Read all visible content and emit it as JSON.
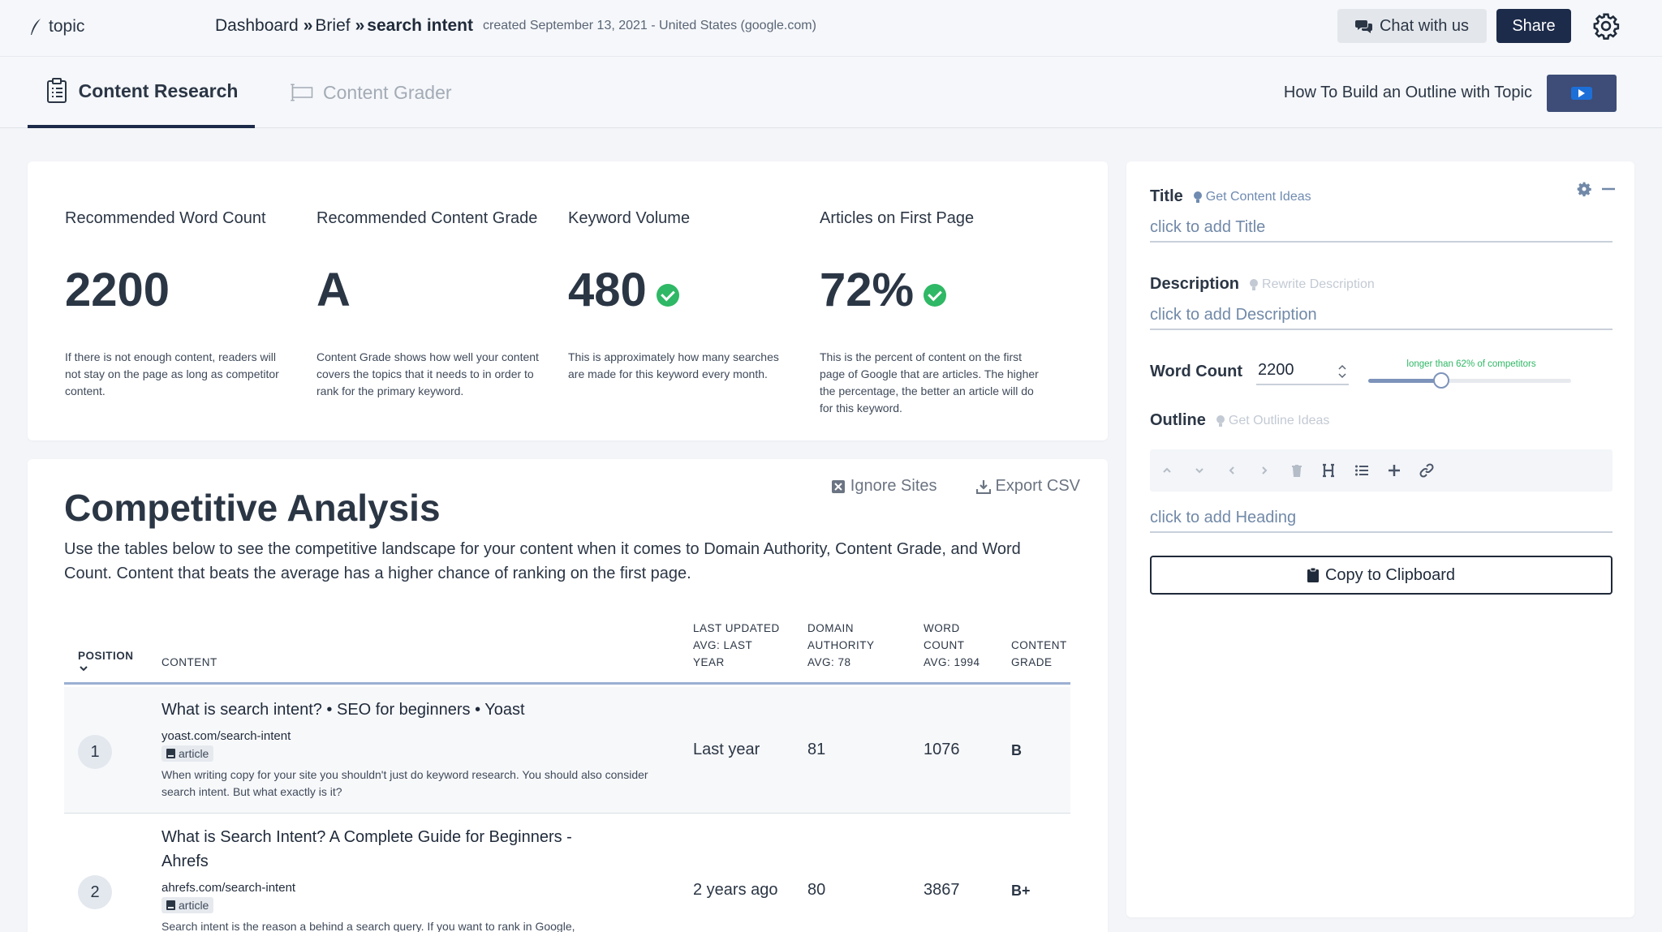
{
  "app": {
    "logo_text": "topic"
  },
  "breadcrumb": {
    "items": [
      "Dashboard",
      "Brief",
      "search intent"
    ],
    "separator": "»",
    "meta": "created September 13, 2021 - United States (google.com)"
  },
  "header": {
    "chat_label": "Chat with us",
    "share_label": "Share"
  },
  "tabs": [
    {
      "label": "Content Research",
      "active": true
    },
    {
      "label": "Content Grader",
      "active": false
    }
  ],
  "howto": {
    "label": "How To Build an Outline with Topic"
  },
  "stats": [
    {
      "label": "Recommended Word Count",
      "value": "2200",
      "check": false,
      "desc": "If there is not enough content, readers will not stay on the page as long as competitor content."
    },
    {
      "label": "Recommended Content Grade",
      "value": "A",
      "check": false,
      "desc": "Content Grade shows how well your content covers the topics that it needs to in order to rank for the primary keyword."
    },
    {
      "label": "Keyword Volume",
      "value": "480",
      "check": true,
      "desc": "This is approximately how many searches are made for this keyword every month."
    },
    {
      "label": "Articles on First Page",
      "value": "72%",
      "check": true,
      "desc": "This is the percent of content on the first page of Google that are articles. The higher the percentage, the better an article will do for this keyword."
    }
  ],
  "competitive": {
    "title": "Competitive Analysis",
    "ignore_label": "Ignore Sites",
    "export_label": "Export CSV",
    "intro": "Use the tables below to see the competitive landscape for your content when it comes to Domain Authority, Content Grade, and Word Count. Content that beats the average has a higher chance of ranking on the first page.",
    "columns": {
      "position": "POSITION",
      "content": "CONTENT",
      "last_updated": [
        "LAST UPDATED",
        "AVG: LAST",
        "YEAR"
      ],
      "domain_authority": [
        "DOMAIN",
        "AUTHORITY",
        "AVG: 78"
      ],
      "word_count": [
        "WORD",
        "COUNT",
        "AVG: 1994"
      ],
      "content_grade": [
        "CONTENT",
        "GRADE"
      ]
    },
    "rows": [
      {
        "position": "1",
        "title": "What is search intent? • SEO for beginners • Yoast",
        "url": "yoast.com/search-intent",
        "type": "article",
        "snippet": "When writing copy for your site you shouldn't just do keyword research. You should also consider search intent. But what exactly is it?",
        "last_updated": "Last year",
        "domain_authority": "81",
        "word_count": "1076",
        "grade": "B"
      },
      {
        "position": "2",
        "title": "What is Search Intent? A Complete Guide for Beginners - Ahrefs",
        "url": "ahrefs.com/search-intent",
        "type": "article",
        "snippet": "Search intent is the reason a behind a search query. If you want to rank in Google,",
        "last_updated": "2 years ago",
        "domain_authority": "80",
        "word_count": "3867",
        "grade": "B+"
      }
    ]
  },
  "outline_panel": {
    "title_label": "Title",
    "title_hint": "Get Content Ideas",
    "title_placeholder": "click to add Title",
    "description_label": "Description",
    "description_hint": "Rewrite Description",
    "description_placeholder": "click to add Description",
    "word_count_label": "Word Count",
    "word_count_value": "2200",
    "slider_note": "longer than 62% of competitors",
    "slider_percent": 36,
    "outline_label": "Outline",
    "outline_hint": "Get Outline Ideas",
    "heading_placeholder": "click to add Heading",
    "copy_label": "Copy to Clipboard"
  },
  "colors": {
    "primary": "#1d2b4a",
    "success": "#2fb865",
    "muted": "#a3abb6",
    "link": "#7189a8"
  }
}
